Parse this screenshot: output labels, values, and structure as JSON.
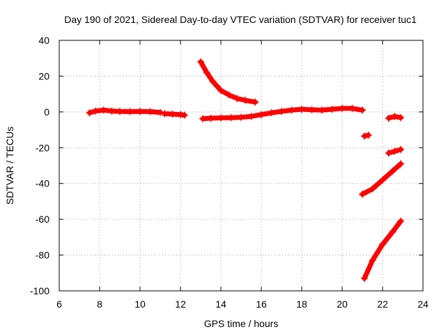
{
  "chart_data": {
    "type": "scatter",
    "title": "Day 190 of 2021, Sidereal Day-to-day VTEC variation (SDTVAR) for receiver tuc1",
    "xlabel": "GPS time / hours",
    "ylabel": "SDTVAR / TECUs",
    "xlim": [
      6,
      24
    ],
    "ylim": [
      -100,
      40
    ],
    "xticks": [
      6,
      8,
      10,
      12,
      14,
      16,
      18,
      20,
      22,
      24
    ],
    "yticks": [
      -100,
      -80,
      -60,
      -40,
      -20,
      0,
      20,
      40
    ],
    "grid": true,
    "marker": "plus",
    "color": "#ff0000",
    "series": [
      {
        "x": [
          7.5,
          7.8,
          8.2,
          8.6,
          9.0,
          9.5,
          10.0,
          10.5,
          11.0
        ],
        "y": [
          -0.5,
          0.5,
          1.0,
          0.5,
          0.3,
          0.2,
          0.3,
          0.2,
          -0.3
        ]
      },
      {
        "x": [
          11.2,
          11.6,
          12.0,
          12.2
        ],
        "y": [
          -1.0,
          -1.2,
          -1.5,
          -1.8
        ]
      },
      {
        "x": [
          13.0,
          13.3,
          13.6,
          14.0,
          14.4,
          14.8,
          15.2,
          15.7
        ],
        "y": [
          28,
          22,
          17,
          12,
          9.5,
          7.5,
          6.5,
          5.5
        ]
      },
      {
        "x": [
          13.1,
          13.5,
          14.0,
          14.5,
          15.0,
          15.5,
          16.0,
          16.5,
          17.0,
          17.5,
          18.0,
          18.5,
          19.0,
          19.5,
          20.0,
          20.5,
          21.0
        ],
        "y": [
          -3.8,
          -3.5,
          -3.3,
          -3.2,
          -3.0,
          -2.5,
          -1.5,
          -0.5,
          0.3,
          1.0,
          1.5,
          1.2,
          1.0,
          1.5,
          2.0,
          2.0,
          1.0
        ]
      },
      {
        "x": [
          21.1,
          21.3
        ],
        "y": [
          -13.5,
          -13.0
        ]
      },
      {
        "x": [
          21.0,
          21.5,
          22.0,
          22.5,
          22.9
        ],
        "y": [
          -46,
          -43,
          -38,
          -33,
          -29
        ]
      },
      {
        "x": [
          22.3,
          22.6,
          22.9
        ],
        "y": [
          -23,
          -22,
          -21
        ]
      },
      {
        "x": [
          22.3,
          22.6,
          22.9
        ],
        "y": [
          -3.5,
          -2.5,
          -3.2
        ]
      },
      {
        "x": [
          21.1,
          21.5,
          22.0,
          22.5,
          22.9
        ],
        "y": [
          -93,
          -83,
          -74,
          -67,
          -61
        ]
      }
    ]
  }
}
